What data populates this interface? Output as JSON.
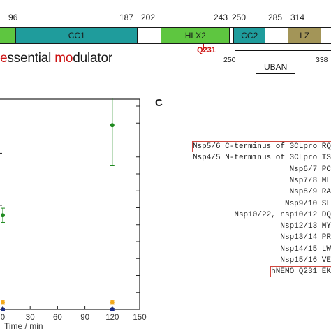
{
  "diagram": {
    "boundaries": [
      "96",
      "187",
      "202",
      "243",
      "250",
      "285",
      "314"
    ],
    "domains": [
      {
        "label": "",
        "color": "#5ec640"
      },
      {
        "label": "CC1",
        "color": "#1f9c9c"
      },
      {
        "label": "",
        "color": "#ffffff"
      },
      {
        "label": "HLX2",
        "color": "#5ec640"
      },
      {
        "label": "",
        "color": "#ffffff"
      },
      {
        "label": "CC2",
        "color": "#1f9c9c"
      },
      {
        "label": "",
        "color": "#ffffff"
      },
      {
        "label": "LZ",
        "color": "#a39558"
      },
      {
        "label": "",
        "color": "#ffffff"
      }
    ],
    "mutation_label": "Q231",
    "subtitle": [
      {
        "text": "e",
        "red": true
      },
      {
        "text": "ssential ",
        "red": false
      },
      {
        "text": "mo",
        "red": true
      },
      {
        "text": "dulator",
        "red": false
      }
    ],
    "uban": {
      "start": "250",
      "end": "338",
      "label": "UBAN"
    }
  },
  "chart_data": {
    "type": "scatter",
    "xlabel": "Time / min",
    "xlim": [
      0,
      150
    ],
    "xticks": [
      "0",
      "30",
      "60",
      "90",
      "120",
      "150"
    ],
    "series": [
      {
        "color": "#1f8a1f",
        "points": [
          {
            "x": 0,
            "y": 0.47,
            "err": 0.035
          },
          {
            "x": 120,
            "y": 0.92,
            "err": 0.2
          }
        ]
      },
      {
        "color": "#f2a91c",
        "points": [
          {
            "x": 0,
            "y": 0.035,
            "err": 0.01
          },
          {
            "x": 120,
            "y": 0.035,
            "err": 0.01
          }
        ]
      },
      {
        "color": "#1a2d8a",
        "points": [
          {
            "x": 0,
            "y": 0.0,
            "err": 0.005
          },
          {
            "x": 120,
            "y": 0.0,
            "err": 0.005
          }
        ]
      }
    ]
  },
  "panel_c": {
    "letter": "C",
    "rows": [
      {
        "name": "Nsp5/6 C-terminus of",
        "seq": "3CLpro RQ",
        "boxed": true
      },
      {
        "name": "Nsp4/5 N-terminus of",
        "seq": "3CLpro TS",
        "boxed": false
      },
      {
        "name": "Nsp6/7",
        "seq": "PC",
        "boxed": false
      },
      {
        "name": "Nsp7/8",
        "seq": "ML",
        "boxed": false
      },
      {
        "name": "Nsp8/9",
        "seq": "RA",
        "boxed": false
      },
      {
        "name": "Nsp9/10",
        "seq": "SL",
        "boxed": false
      },
      {
        "name": "Nsp10/22, nsp10/12",
        "seq": "DQ",
        "boxed": false
      },
      {
        "name": "Nsp12/13",
        "seq": "MY",
        "boxed": false
      },
      {
        "name": "Nsp13/14",
        "seq": "PR",
        "boxed": false
      },
      {
        "name": "Nsp14/15",
        "seq": "LW",
        "boxed": false
      },
      {
        "name": "Nsp15/16",
        "seq": "VE",
        "boxed": false
      },
      {
        "name": "hNEMO Q231",
        "seq": "EK",
        "boxed": true
      }
    ]
  }
}
